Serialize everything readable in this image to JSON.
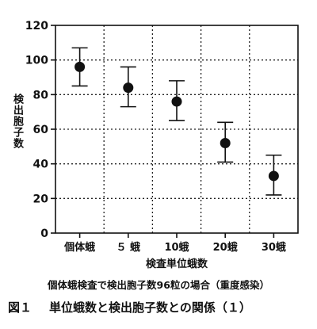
{
  "chart_data": {
    "type": "scatter",
    "categories": [
      "個体蛾",
      "５ 蛾",
      "10蛾",
      "20蛾",
      "30蛾"
    ],
    "values": [
      96,
      84,
      76,
      52,
      33
    ],
    "error_low": [
      85,
      73,
      65,
      41,
      22
    ],
    "error_high": [
      107,
      96,
      88,
      64,
      45
    ],
    "ylim": [
      0,
      120
    ],
    "yticks": [
      0,
      20,
      40,
      60,
      80,
      100,
      120
    ],
    "grid": true,
    "xlabel": "検査単位蛾数",
    "ylabel": "検出胞子数",
    "note": "個体蛾検査で検出胞子数96粒の場合（重度感染）",
    "caption_num": "図１",
    "caption_text": "単位蛾数と検出胞子数との関係（１）"
  }
}
